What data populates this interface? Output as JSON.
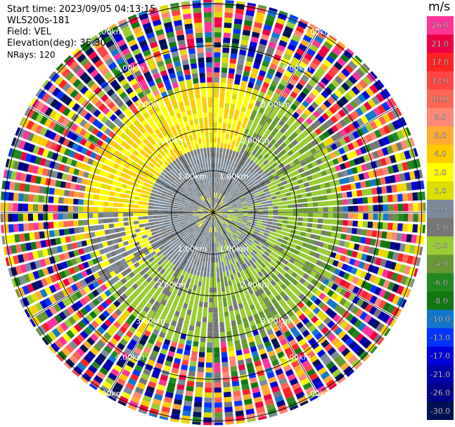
{
  "header": {
    "start_time": "Start time: 2023/09/05 04:13:15",
    "instrument": "WLS200s-181",
    "field": "Field: VEL",
    "elevation": "Elevation(deg): 35.30",
    "nrays": "NRays: 120"
  },
  "colorbar": {
    "unit": "m/s",
    "ticks": [
      "26.0",
      "21.0",
      "17.0",
      "13.0",
      "10.0",
      "8.0",
      "6.0",
      "4.0",
      "2.0",
      "1.0",
      "0.0",
      "-1.0",
      "-2.0",
      "-4.0",
      "-6.0",
      "-8.0",
      "-10.0",
      "-13.0",
      "-17.0",
      "-21.0",
      "-26.0",
      "-30.0"
    ],
    "colors": [
      "#ff3399",
      "#ee0044",
      "#ff2222",
      "#ff4444",
      "#ff6655",
      "#ff8877",
      "#ffaa33",
      "#ffcc00",
      "#ffff00",
      "#dddd00",
      "#7a8a99",
      "#777777",
      "#99cc33",
      "#669933",
      "#228822",
      "#117711",
      "#1177cc",
      "#0033ff",
      "#0000dd",
      "#0000aa",
      "#000088",
      "#001155"
    ]
  },
  "chart_data": {
    "type": "heatmap",
    "title": "",
    "projection": "PPI polar",
    "range_rings_km": [
      1.0,
      2.0,
      3.0,
      4.0,
      5.0
    ],
    "ring_labels": [
      "1.00km",
      "2.00km",
      "3.00km",
      "4.00km",
      "5.00km"
    ],
    "spoke_angles_deg": [
      0,
      30,
      60,
      90,
      120,
      150,
      180,
      210,
      240,
      270,
      300,
      330
    ],
    "max_range_km": 5.1,
    "nrays": 120,
    "field": "VEL",
    "units": "m/s",
    "value_range": [
      -30.0,
      26.0
    ],
    "description_regions": {
      "near_range_west_east": "gray (~0 m/s)",
      "north_west_2_3km": "yellow (+1 to +4 m/s)",
      "east_south_2_3km": "light green (-1 to -4 m/s)",
      "beyond_3km": "noise (all colors)"
    }
  }
}
